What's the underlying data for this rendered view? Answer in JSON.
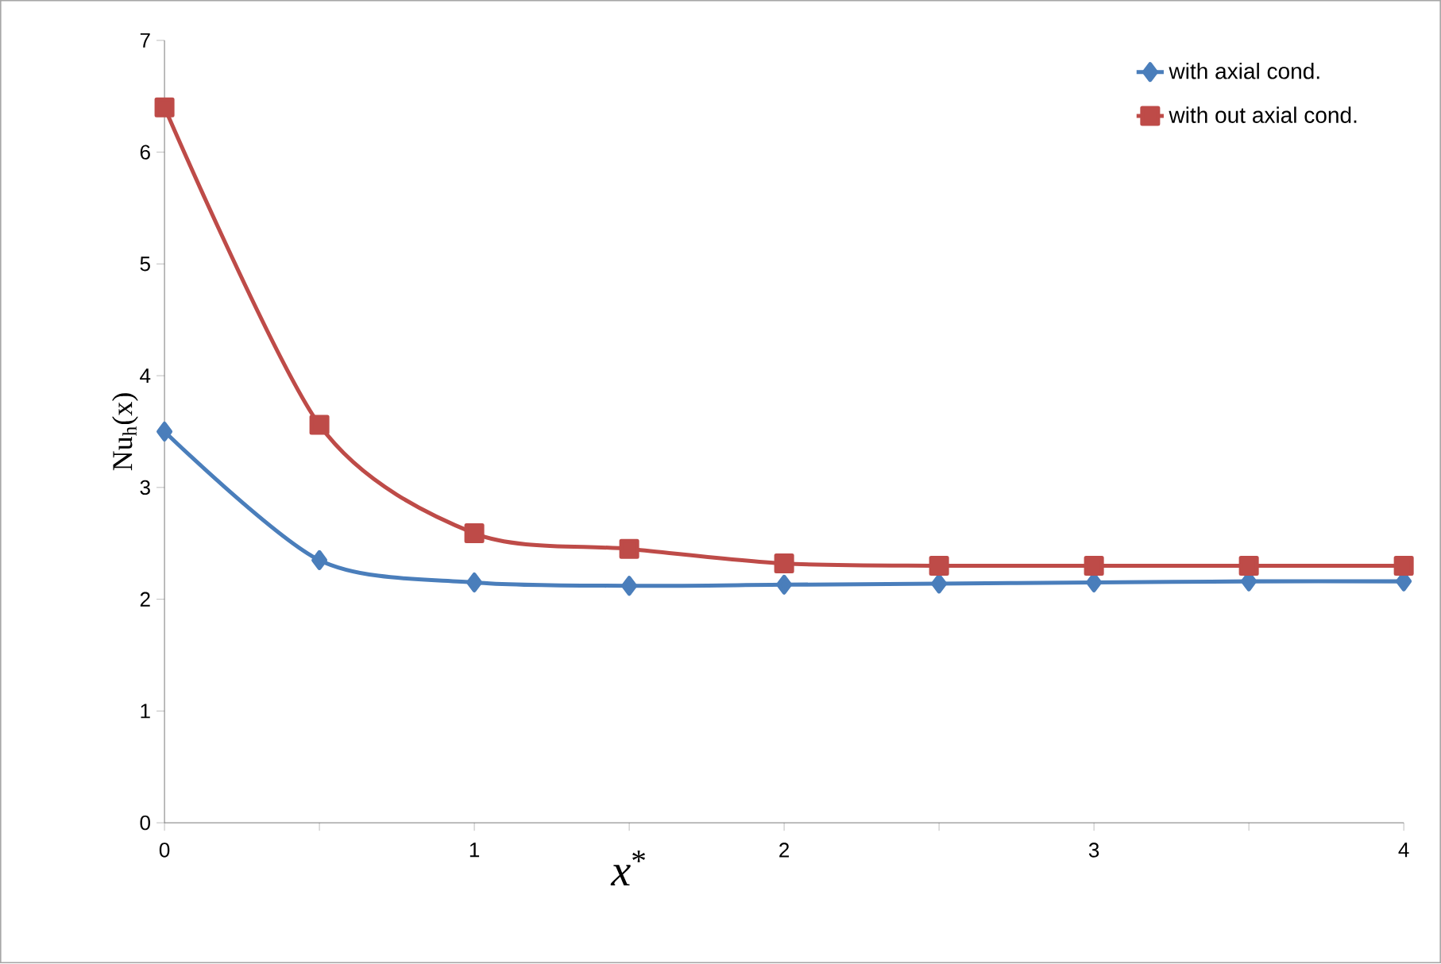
{
  "chart_data": {
    "type": "line",
    "xlabel": "*x*$^{*}$",
    "ylabel": "Nu$_{h}$(x)",
    "x": [
      0,
      0.5,
      1,
      1.5,
      2,
      2.5,
      3,
      3.5,
      4
    ],
    "series": [
      {
        "name": "with axial cond.",
        "color": "#4a7ebb",
        "marker": "diamond",
        "values": [
          3.5,
          2.35,
          2.15,
          2.12,
          2.13,
          2.14,
          2.15,
          2.16,
          2.16
        ]
      },
      {
        "name": "with out axial cond.",
        "color": "#be4b48",
        "marker": "square",
        "values": [
          6.4,
          3.56,
          2.59,
          2.45,
          2.32,
          2.3,
          2.3,
          2.3,
          2.3
        ]
      }
    ],
    "xlim": [
      0,
      4
    ],
    "ylim": [
      0,
      7
    ],
    "xticks": [
      0,
      {
        "value": 0.5,
        "label": null
      },
      1,
      {
        "value": 1.5,
        "label": null
      },
      2,
      {
        "value": 2.5,
        "label": null
      },
      3,
      {
        "value": 3.5,
        "label": null
      },
      4
    ],
    "yticks": [
      0,
      1,
      2,
      3,
      4,
      5,
      6,
      7
    ],
    "grid": false,
    "legend": "top right",
    "line_style": "solid"
  }
}
